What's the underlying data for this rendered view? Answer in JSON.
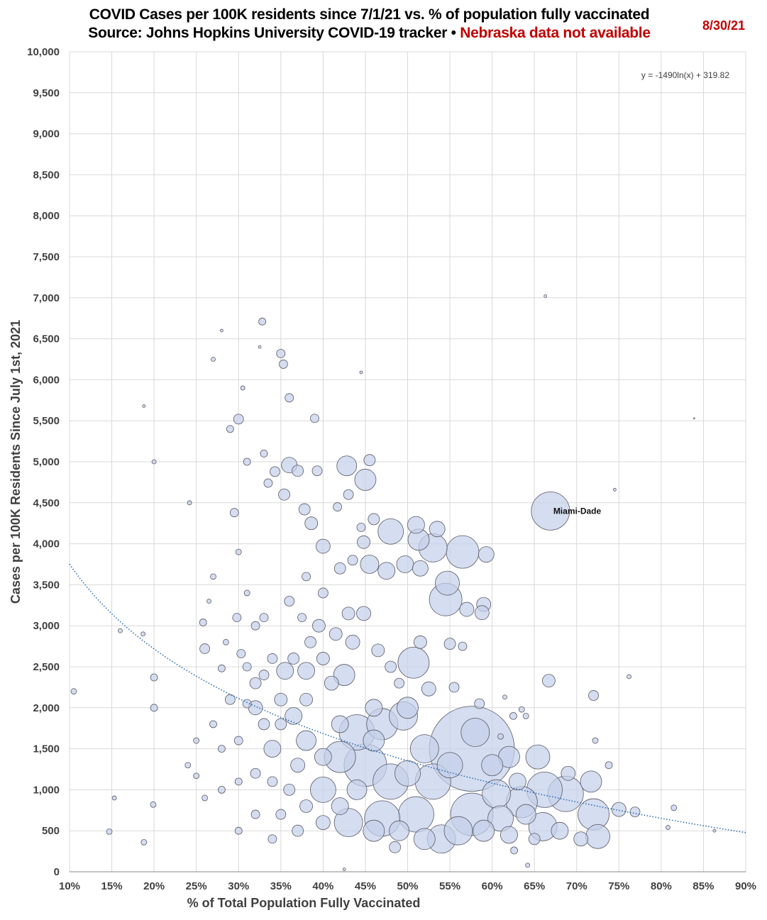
{
  "header": {
    "title_line1": "COVID Cases per 100K residents since 7/1/21 vs. % of population fully vaccinated",
    "title_line2_black": "Source: Johns Hopkins University COVID-19 tracker •",
    "title_line2_red": "Nebraska data not available",
    "date": "8/30/21"
  },
  "colors": {
    "bubble_fill": "#c5d0ea",
    "bubble_stroke": "#5a5a66",
    "trendline": "#2e6db4",
    "grid": "#d9d9d9",
    "accent_red": "#c00000"
  },
  "chart_data": {
    "type": "scatter",
    "subtype": "bubble",
    "xlabel": "% of Total Population Fully Vaccinated",
    "ylabel": "Cases per 100K Residents Since July 1st, 2021",
    "xlim": [
      10,
      90
    ],
    "ylim": [
      0,
      10000
    ],
    "grid": true,
    "x_ticks": [
      "10%",
      "15%",
      "20%",
      "25%",
      "30%",
      "35%",
      "40%",
      "45%",
      "50%",
      "55%",
      "60%",
      "65%",
      "70%",
      "75%",
      "80%",
      "85%",
      "90%"
    ],
    "y_ticks": [
      "0",
      "500",
      "1,000",
      "1,500",
      "2,000",
      "2,500",
      "3,000",
      "3,500",
      "4,000",
      "4,500",
      "5,000",
      "5,500",
      "6,000",
      "6,500",
      "7,000",
      "7,500",
      "8,000",
      "8,500",
      "9,000",
      "9,500",
      "10,000"
    ],
    "trendline": {
      "type": "logarithmic",
      "equation": "y = -1490ln(x) + 319.82",
      "a": -1490,
      "b": 319.82,
      "style": "dotted"
    },
    "annotations": [
      {
        "label": "Miami-Dade",
        "x": 66.9,
        "y": 4400
      }
    ],
    "points_note_columns": [
      "x_pct_vaccinated",
      "cases_per_100k",
      "bubble_size"
    ],
    "points": [
      [
        57.6,
        1500,
        60
      ],
      [
        57.6,
        700,
        30
      ],
      [
        45,
        1300,
        30
      ],
      [
        68.7,
        950,
        25
      ],
      [
        66.2,
        1000,
        25
      ],
      [
        44,
        1700,
        25
      ],
      [
        51,
        700,
        25
      ],
      [
        47,
        650,
        25
      ],
      [
        48,
        1100,
        25
      ],
      [
        53,
        1100,
        25
      ],
      [
        66.9,
        4400,
        27
      ],
      [
        56.5,
        3900,
        23
      ],
      [
        54.5,
        3320,
        23
      ],
      [
        50.7,
        2550,
        22
      ],
      [
        47,
        1800,
        22
      ],
      [
        42,
        1400,
        22
      ],
      [
        72,
        700,
        22
      ],
      [
        63.5,
        850,
        22
      ],
      [
        53,
        3950,
        20
      ],
      [
        54,
        400,
        20
      ],
      [
        43,
        600,
        20
      ],
      [
        49.5,
        1900,
        20
      ],
      [
        60.5,
        950,
        20
      ],
      [
        66,
        550,
        20
      ],
      [
        56,
        500,
        20
      ],
      [
        58,
        1700,
        20
      ],
      [
        52,
        1500,
        20
      ],
      [
        48,
        4150,
        18
      ],
      [
        40,
        1000,
        18
      ],
      [
        61,
        650,
        18
      ],
      [
        55,
        1300,
        18
      ],
      [
        50,
        1200,
        18
      ],
      [
        54.7,
        3520,
        17
      ],
      [
        65.4,
        1400,
        17
      ],
      [
        72.5,
        430,
        17
      ],
      [
        51.3,
        4050,
        15
      ],
      [
        45,
        4780,
        15
      ],
      [
        62,
        1400,
        15
      ],
      [
        71.7,
        1100,
        15
      ],
      [
        42.5,
        2400,
        15
      ],
      [
        50,
        2000,
        15
      ],
      [
        46,
        500,
        15
      ],
      [
        52,
        400,
        15
      ],
      [
        59,
        500,
        15
      ],
      [
        60,
        1300,
        15
      ],
      [
        46,
        1600,
        15
      ],
      [
        42.8,
        4950,
        14
      ],
      [
        38,
        1600,
        14
      ],
      [
        44,
        1000,
        14
      ],
      [
        49,
        500,
        14
      ],
      [
        64,
        700,
        14
      ],
      [
        45.5,
        3750,
        13
      ],
      [
        47.5,
        3670,
        12
      ],
      [
        49.7,
        3750,
        12
      ],
      [
        51,
        4230,
        12
      ],
      [
        38,
        2450,
        12
      ],
      [
        35.5,
        2450,
        12
      ],
      [
        34,
        1500,
        12
      ],
      [
        36.5,
        1900,
        12
      ],
      [
        46,
        2000,
        12
      ],
      [
        42,
        800,
        12
      ],
      [
        62,
        450,
        12
      ],
      [
        68,
        500,
        12
      ],
      [
        63,
        1100,
        12
      ],
      [
        42,
        1800,
        12
      ],
      [
        40,
        1400,
        12
      ],
      [
        51.5,
        3700,
        11
      ],
      [
        53.5,
        4180,
        11
      ],
      [
        59.3,
        3870,
        11
      ],
      [
        36,
        4960,
        11
      ],
      [
        57,
        3200,
        10
      ],
      [
        59,
        3260,
        10
      ],
      [
        58.8,
        3160,
        10
      ],
      [
        40,
        3970,
        10
      ],
      [
        32,
        2000,
        10
      ],
      [
        75,
        760,
        10
      ],
      [
        70.5,
        400,
        10
      ],
      [
        41,
        2300,
        10
      ],
      [
        43.5,
        2800,
        10
      ],
      [
        44.8,
        3150,
        10
      ],
      [
        52.5,
        2230,
        10
      ],
      [
        40,
        600,
        10
      ],
      [
        69,
        1200,
        10
      ],
      [
        37,
        1300,
        10
      ],
      [
        44.8,
        4020,
        9
      ],
      [
        51.5,
        2800,
        9
      ],
      [
        66.7,
        2330,
        9
      ],
      [
        38.6,
        4250,
        9
      ],
      [
        40,
        2600,
        9
      ],
      [
        39.5,
        3000,
        9
      ],
      [
        41.5,
        2900,
        9
      ],
      [
        43,
        3150,
        9
      ],
      [
        46.5,
        2700,
        9
      ],
      [
        38,
        2100,
        9
      ],
      [
        35,
        2100,
        9
      ],
      [
        38,
        800,
        9
      ],
      [
        45.5,
        5020,
        8
      ],
      [
        37,
        4890,
        8
      ],
      [
        35.4,
        4600,
        8
      ],
      [
        37.8,
        4420,
        8
      ],
      [
        38.5,
        2800,
        8
      ],
      [
        48,
        2500,
        8
      ],
      [
        55,
        2780,
        8
      ],
      [
        33,
        1800,
        8
      ],
      [
        36,
        1000,
        8
      ],
      [
        37,
        500,
        8
      ],
      [
        65,
        400,
        8
      ],
      [
        48.5,
        300,
        8
      ],
      [
        35,
        1800,
        8
      ],
      [
        32,
        2300,
        8
      ],
      [
        36.5,
        2600,
        8
      ],
      [
        42,
        3700,
        8
      ],
      [
        46,
        4300,
        8
      ],
      [
        72,
        2150,
        7
      ],
      [
        76.9,
        730,
        7
      ],
      [
        34.3,
        4880,
        7
      ],
      [
        39.3,
        4890,
        7
      ],
      [
        26,
        2720,
        7
      ],
      [
        29,
        2100,
        7
      ],
      [
        34,
        2600,
        7
      ],
      [
        33,
        2400,
        7
      ],
      [
        36,
        3300,
        7
      ],
      [
        49,
        2300,
        7
      ],
      [
        55.5,
        2250,
        7
      ],
      [
        58.5,
        2050,
        7
      ],
      [
        32,
        1200,
        7
      ],
      [
        34,
        1100,
        7
      ],
      [
        35,
        700,
        7
      ],
      [
        40,
        3400,
        7
      ],
      [
        43.5,
        3800,
        7
      ],
      [
        43,
        4600,
        7
      ],
      [
        30,
        5520,
        7
      ],
      [
        35,
        6320,
        6
      ],
      [
        35.3,
        6190,
        6
      ],
      [
        36,
        5780,
        6
      ],
      [
        39,
        5530,
        6
      ],
      [
        33.5,
        4740,
        6
      ],
      [
        29.5,
        4380,
        6
      ],
      [
        30.3,
        2660,
        6
      ],
      [
        31,
        2050,
        6
      ],
      [
        29.8,
        3100,
        6
      ],
      [
        32,
        3000,
        6
      ],
      [
        33,
        3100,
        6
      ],
      [
        37.5,
        3100,
        6
      ],
      [
        56.5,
        2750,
        6
      ],
      [
        30,
        1600,
        6
      ],
      [
        32,
        700,
        6
      ],
      [
        34,
        400,
        6
      ],
      [
        31,
        2500,
        6
      ],
      [
        38,
        3600,
        6
      ],
      [
        44.5,
        4200,
        6
      ],
      [
        41.7,
        4450,
        6
      ],
      [
        32.8,
        6710,
        5
      ],
      [
        20,
        2370,
        5
      ],
      [
        20,
        2000,
        5
      ],
      [
        25.8,
        3040,
        5
      ],
      [
        28,
        2480,
        5
      ],
      [
        28,
        1500,
        5
      ],
      [
        27,
        1800,
        5
      ],
      [
        28,
        1000,
        5
      ],
      [
        30,
        1100,
        5
      ],
      [
        30,
        500,
        5
      ],
      [
        33,
        5100,
        5
      ],
      [
        31,
        5000,
        5
      ],
      [
        29,
        5400,
        5
      ],
      [
        73.8,
        1300,
        5
      ],
      [
        62.5,
        1900,
        5
      ],
      [
        62.6,
        260,
        5
      ],
      [
        19.9,
        820,
        4
      ],
      [
        10.5,
        2200,
        4
      ],
      [
        14.7,
        490,
        4
      ],
      [
        18.8,
        360,
        4
      ],
      [
        25,
        1170,
        4
      ],
      [
        27,
        3600,
        4
      ],
      [
        28.5,
        2800,
        4
      ],
      [
        30,
        3900,
        4
      ],
      [
        31,
        3400,
        4
      ],
      [
        25,
        1600,
        4
      ],
      [
        24,
        1300,
        4
      ],
      [
        26,
        900,
        4
      ],
      [
        81.5,
        780,
        4
      ],
      [
        72.2,
        1600,
        4
      ],
      [
        63.5,
        1980,
        4
      ],
      [
        64,
        1900,
        4
      ],
      [
        61,
        1650,
        4
      ],
      [
        15.3,
        900,
        3
      ],
      [
        16,
        2940,
        3
      ],
      [
        18.7,
        2900,
        3
      ],
      [
        20,
        5000,
        3
      ],
      [
        24.2,
        4500,
        3
      ],
      [
        26.5,
        3300,
        3
      ],
      [
        30.5,
        5900,
        3
      ],
      [
        27,
        6250,
        3
      ],
      [
        80.8,
        540,
        3
      ],
      [
        76.2,
        2380,
        3
      ],
      [
        61.5,
        2130,
        3
      ],
      [
        64.2,
        80,
        3
      ],
      [
        18.8,
        5680,
        2
      ],
      [
        28,
        6600,
        2
      ],
      [
        32.5,
        6400,
        2
      ],
      [
        66.3,
        7020,
        2
      ],
      [
        44.5,
        6090,
        2
      ],
      [
        74.5,
        4660,
        2
      ],
      [
        86.3,
        500,
        2
      ],
      [
        42.5,
        30,
        2
      ],
      [
        83.9,
        5530,
        1
      ]
    ]
  }
}
